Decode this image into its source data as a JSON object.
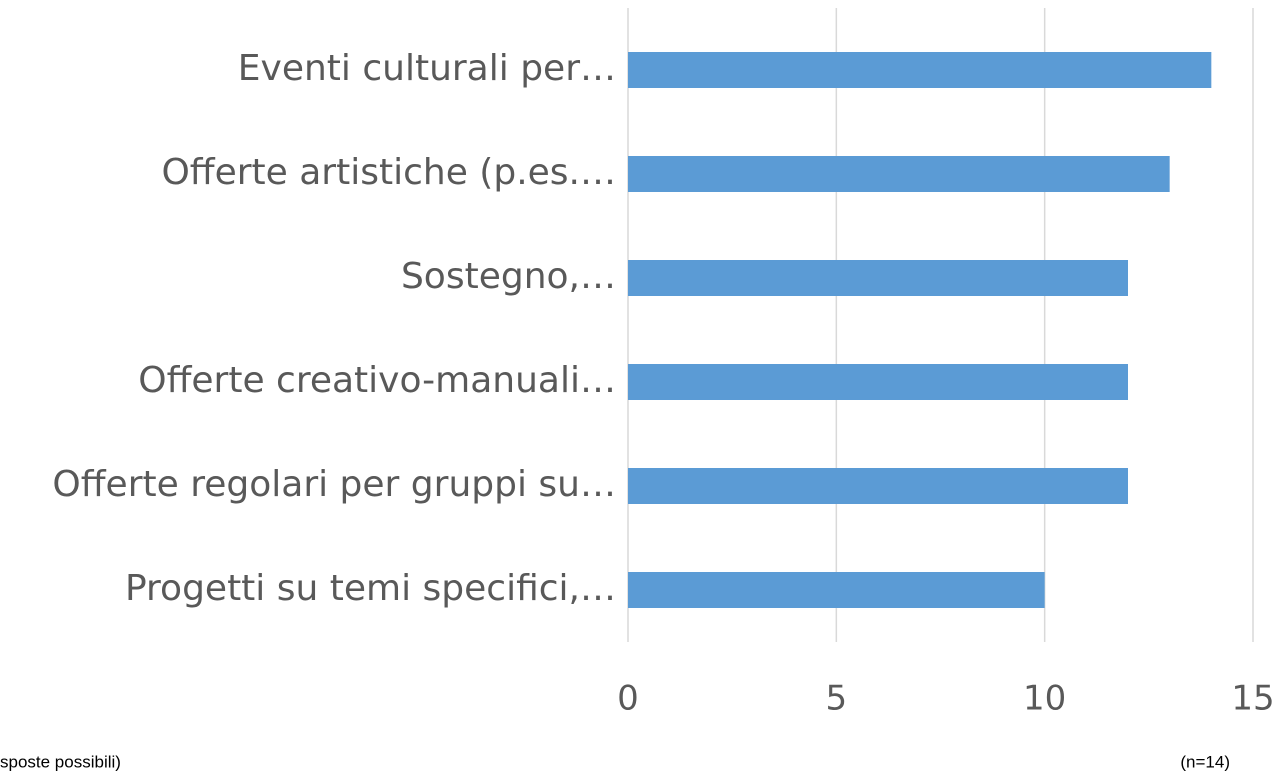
{
  "chart_data": {
    "type": "bar",
    "orientation": "horizontal",
    "categories": [
      "Eventi culturali per…",
      "Offerte artistiche (p.es.…",
      "Sostegno,…",
      "Offerte creativo-manuali…",
      "Offerte regolari per gruppi su…",
      "Progetti su temi specifici,…"
    ],
    "values": [
      14,
      13,
      12,
      12,
      12,
      10
    ],
    "color": "#5b9bd5",
    "xlim": [
      0,
      15
    ],
    "xticks": [
      0,
      5,
      10,
      15
    ],
    "grid": true,
    "footnote_left": "sposte possibili)",
    "footnote_right": "(n=14)"
  }
}
